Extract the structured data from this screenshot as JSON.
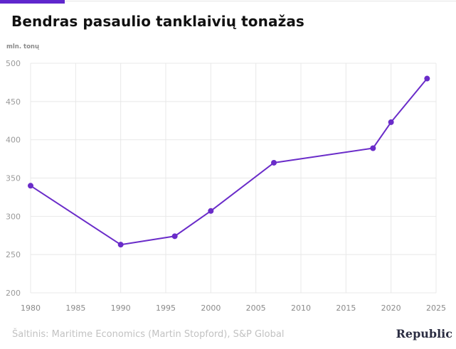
{
  "header": {
    "title": "Bendras pasaulio tanklaivių tonažas",
    "accent_color": "#5f27cd"
  },
  "chart_data": {
    "type": "line",
    "title": "Bendras pasaulio tanklaivių tonažas",
    "ylabel": "mln. tonų",
    "xlabel": "",
    "xlim": [
      1980,
      2025
    ],
    "ylim": [
      200,
      500
    ],
    "xticks": [
      1980,
      1985,
      1990,
      1995,
      2000,
      2005,
      2010,
      2015,
      2020,
      2025
    ],
    "yticks": [
      200,
      250,
      300,
      350,
      400,
      450,
      500
    ],
    "grid": true,
    "line_color": "#6a2cc9",
    "series": [
      {
        "x": [
          1980,
          1990,
          1996,
          2000,
          2007,
          2018,
          2020,
          2024
        ],
        "values": [
          340,
          263,
          274,
          307,
          370,
          389,
          423,
          480
        ]
      }
    ]
  },
  "footer": {
    "source": "Šaltinis: Maritime Economics (Martin Stopford), S&P Global",
    "brand": "Republic"
  }
}
